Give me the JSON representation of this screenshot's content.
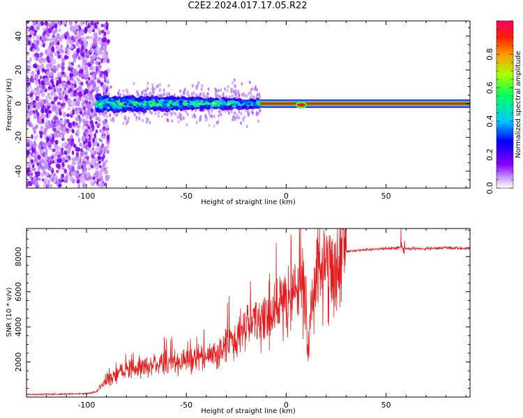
{
  "title": "C2E2.2024.017.17.05.R22",
  "colors": {
    "snr_line": "#e41a1c",
    "colormap": [
      "#ffffff",
      "#8b00ff",
      "#0000ff",
      "#00ffff",
      "#00ff00",
      "#ffff00",
      "#ff0000",
      "#ff00ff"
    ]
  },
  "chart_data": [
    {
      "type": "heatmap",
      "xlabel": "Height of straight line (km)",
      "ylabel": "Frequency (Hz)",
      "xlim": [
        -130,
        92
      ],
      "ylim": [
        -50,
        49
      ],
      "x_ticks": [
        -100,
        -50,
        0,
        50
      ],
      "y_ticks": [
        -40,
        -20,
        0,
        20,
        40
      ],
      "grid": false,
      "colorbar": {
        "label": "Normalized spectral amplitude",
        "range": [
          0,
          1
        ],
        "ticks": [
          "0.0",
          "0.2",
          "0.4",
          "0.6",
          "0.8"
        ]
      },
      "regions": [
        {
          "x_range": [
            -130,
            -95
          ],
          "freq_spread": 49,
          "amplitude": 0.1
        },
        {
          "x_range": [
            -95,
            -13
          ],
          "freq_spread": 6,
          "amplitude": 0.35
        },
        {
          "x_range": [
            -13,
            92
          ],
          "freq_spread": 1,
          "amplitude": 0.9
        }
      ]
    },
    {
      "type": "line",
      "xlabel": "Height of straight line (km)",
      "ylabel": "SNR (10 * v/v)",
      "xlim": [
        -130,
        92
      ],
      "ylim": [
        0,
        9600
      ],
      "x_ticks": [
        -100,
        -50,
        0,
        50
      ],
      "y_ticks": [
        2000,
        4000,
        6000,
        8000
      ],
      "grid": false,
      "series": [
        {
          "x": [
            -130,
            -120,
            -110,
            -100,
            -95,
            -92,
            -90,
            -85,
            -80,
            -75,
            -70,
            -65,
            -60,
            -55,
            -50,
            -45,
            -40,
            -35,
            -30,
            -25,
            -20,
            -15,
            -10,
            -5,
            0,
            5,
            8,
            10,
            11,
            12,
            15,
            20,
            25,
            30,
            40,
            50,
            58,
            60,
            70,
            80,
            92
          ],
          "y": [
            150,
            160,
            170,
            200,
            300,
            700,
            1000,
            1200,
            1500,
            1700,
            1800,
            1900,
            2000,
            2000,
            2100,
            2150,
            2300,
            2500,
            3000,
            3500,
            4000,
            4300,
            4600,
            5000,
            5500,
            6000,
            6500,
            5000,
            2000,
            4500,
            6800,
            7500,
            8000,
            8300,
            8400,
            8450,
            8500,
            8450,
            8450,
            8500,
            8450
          ]
        }
      ]
    }
  ]
}
